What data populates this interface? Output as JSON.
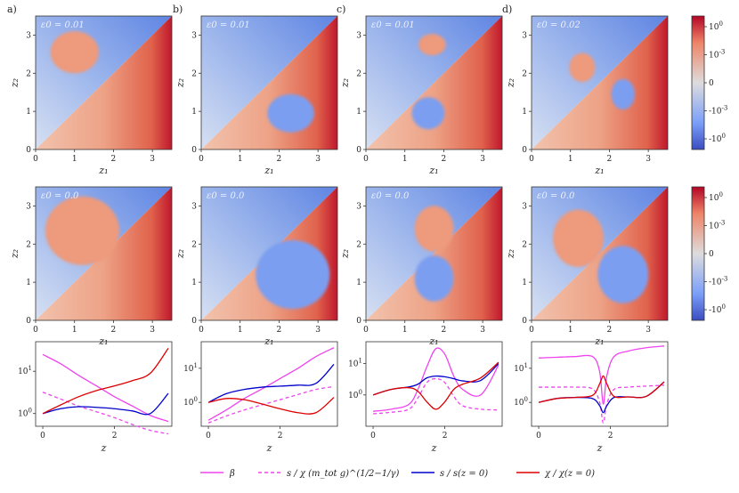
{
  "panel_letters": [
    "a)",
    "b)",
    "c)",
    "d)"
  ],
  "colors": {
    "beta": "#ee44ee",
    "s_ratio": "#0000cc",
    "chi_ratio": "#dd0000",
    "cmap_low": "#3b4cc0",
    "cmap_mid": "#dddcdc",
    "cmap_high": "#b40426"
  },
  "colorbar": {
    "tick_labels": [
      "10^0",
      "10^-3",
      "0",
      "-10^-3",
      "-10^0"
    ]
  },
  "legend": {
    "entries": [
      {
        "key": "beta",
        "label": "β",
        "style": "solid"
      },
      {
        "key": "s_scaled",
        "label": "s / χ (m_tot g)^(1/2−1/γ)",
        "style": "dashed"
      },
      {
        "key": "s_ratio",
        "label": "s / s(z = 0)",
        "style": "solid"
      },
      {
        "key": "chi_ratio",
        "label": "χ / χ(z = 0)",
        "style": "solid"
      }
    ]
  },
  "chart_data": [
    {
      "type": "heatmap",
      "row": "top",
      "annotations": [
        "ε0 = 0.01",
        "ε0 = 0.01",
        "ε0 = 0.01",
        "ε0 = 0.02"
      ],
      "xlabel": "z1",
      "ylabel": "z2",
      "xlim": [
        0,
        3.5
      ],
      "ylim": [
        0,
        3.5
      ],
      "x_ticks": [
        0,
        1,
        2,
        3
      ],
      "y_ticks": [
        0,
        1,
        2,
        3
      ],
      "scale": "symlog",
      "islands": [
        [
          {
            "cx": 1.0,
            "cy": 2.55,
            "rx": 0.62,
            "ry": 0.55,
            "sign": 1
          }
        ],
        [
          {
            "cx": 2.3,
            "cy": 0.95,
            "rx": 0.6,
            "ry": 0.5,
            "sign": -1
          }
        ],
        [
          {
            "cx": 1.7,
            "cy": 2.75,
            "rx": 0.35,
            "ry": 0.28,
            "sign": 1
          },
          {
            "cx": 1.6,
            "cy": 0.95,
            "rx": 0.42,
            "ry": 0.42,
            "sign": -1
          }
        ],
        [
          {
            "cx": 1.3,
            "cy": 2.15,
            "rx": 0.33,
            "ry": 0.38,
            "sign": 1
          },
          {
            "cx": 2.35,
            "cy": 1.45,
            "rx": 0.3,
            "ry": 0.4,
            "sign": -1
          }
        ]
      ]
    },
    {
      "type": "heatmap",
      "row": "middle",
      "annotations": [
        "ε0 = 0.0",
        "ε0 = 0.0",
        "ε0 = 0.0",
        "ε0 = 0.0"
      ],
      "xlabel": "z1",
      "ylabel": "z2",
      "xlim": [
        0,
        3.5
      ],
      "ylim": [
        0,
        3.5
      ],
      "x_ticks": [
        0,
        1,
        2,
        3
      ],
      "y_ticks": [
        0,
        1,
        2,
        3
      ],
      "scale": "symlog",
      "islands": [
        [
          {
            "cx": 1.2,
            "cy": 2.35,
            "rx": 0.95,
            "ry": 0.9,
            "sign": 1
          }
        ],
        [
          {
            "cx": 2.35,
            "cy": 1.2,
            "rx": 0.95,
            "ry": 0.9,
            "sign": -1
          }
        ],
        [
          {
            "cx": 1.75,
            "cy": 2.4,
            "rx": 0.5,
            "ry": 0.6,
            "sign": 1
          },
          {
            "cx": 1.75,
            "cy": 1.1,
            "rx": 0.5,
            "ry": 0.6,
            "sign": -1
          }
        ],
        [
          {
            "cx": 1.2,
            "cy": 2.15,
            "rx": 0.65,
            "ry": 0.75,
            "sign": 1
          },
          {
            "cx": 2.35,
            "cy": 1.2,
            "rx": 0.65,
            "ry": 0.75,
            "sign": -1
          }
        ]
      ]
    },
    {
      "type": "line",
      "row": "bottom",
      "xlabel": "z",
      "yscale": "log",
      "xlim": [
        -0.2,
        3.6
      ],
      "x_ticks": [
        0,
        2
      ],
      "y_tick_labels": [
        "10^0",
        "10^1"
      ],
      "panels": [
        {
          "ylim": [
            0.5,
            50
          ],
          "x": [
            0,
            0.5,
            1,
            1.5,
            2,
            2.5,
            3,
            3.5
          ],
          "series": [
            {
              "key": "beta",
              "values": [
                25,
                15,
                8,
                4.5,
                2.5,
                1.5,
                0.9,
                0.65
              ]
            },
            {
              "key": "s_scaled",
              "values": [
                3.2,
                2.2,
                1.5,
                1.1,
                0.8,
                0.55,
                0.4,
                0.33
              ]
            },
            {
              "key": "s_ratio",
              "values": [
                1.0,
                1.3,
                1.45,
                1.4,
                1.3,
                1.15,
                1.0,
                3.0
              ]
            },
            {
              "key": "chi_ratio",
              "values": [
                1.0,
                1.6,
                2.5,
                3.5,
                4.5,
                6,
                9,
                35
              ]
            }
          ]
        },
        {
          "ylim": [
            0.2,
            60
          ],
          "x": [
            0,
            0.5,
            1,
            1.5,
            2,
            2.5,
            3,
            3.5
          ],
          "series": [
            {
              "key": "beta",
              "values": [
                0.3,
                0.6,
                1.3,
                2.5,
                5,
                10,
                22,
                40
              ]
            },
            {
              "key": "s_scaled",
              "values": [
                0.25,
                0.4,
                0.6,
                0.85,
                1.2,
                1.7,
                2.4,
                2.9
              ]
            },
            {
              "key": "s_ratio",
              "values": [
                1.0,
                1.8,
                2.4,
                2.8,
                3.0,
                3.2,
                3.6,
                13
              ]
            },
            {
              "key": "chi_ratio",
              "values": [
                1.0,
                1.3,
                1.2,
                0.9,
                0.65,
                0.5,
                0.5,
                1.4
              ]
            }
          ]
        },
        {
          "ylim": [
            0.1,
            50
          ],
          "x": [
            0,
            0.5,
            1,
            1.25,
            1.5,
            1.75,
            2,
            2.25,
            2.5,
            3,
            3.5
          ],
          "series": [
            {
              "key": "beta",
              "values": [
                0.3,
                0.35,
                0.5,
                1.5,
                8,
                30,
                20,
                4,
                1.5,
                1.0,
                9
              ]
            },
            {
              "key": "s_scaled",
              "values": [
                0.25,
                0.28,
                0.35,
                0.8,
                2.5,
                3.3,
                2.5,
                0.9,
                0.45,
                0.35,
                0.33
              ]
            },
            {
              "key": "s_ratio",
              "values": [
                1.0,
                1.5,
                1.8,
                2.2,
                3.5,
                4.0,
                3.8,
                3.3,
                2.8,
                2.9,
                10
              ]
            },
            {
              "key": "chi_ratio",
              "values": [
                1.0,
                1.5,
                1.7,
                1.3,
                0.6,
                0.35,
                0.6,
                1.5,
                2.2,
                3.5,
                11
              ]
            }
          ]
        },
        {
          "ylim": [
            0.2,
            60
          ],
          "x": [
            0,
            0.5,
            1,
            1.5,
            1.7,
            1.8,
            1.9,
            2.1,
            2.5,
            3,
            3.5
          ],
          "series": [
            {
              "key": "beta",
              "values": [
                20,
                21,
                22,
                22,
                8,
                0.9,
                6,
                22,
                32,
                40,
                45
              ]
            },
            {
              "key": "s_scaled",
              "values": [
                2.8,
                2.8,
                2.8,
                2.5,
                1.0,
                0.25,
                0.9,
                2.4,
                2.8,
                3.0,
                3.2
              ]
            },
            {
              "key": "s_ratio",
              "values": [
                1.0,
                1.3,
                1.4,
                1.3,
                0.8,
                0.5,
                0.8,
                1.4,
                1.45,
                1.5,
                4.0
              ]
            },
            {
              "key": "chi_ratio",
              "values": [
                1.0,
                1.3,
                1.4,
                1.6,
                3.5,
                6,
                3.5,
                1.5,
                1.45,
                1.5,
                4.0
              ]
            }
          ]
        }
      ]
    }
  ]
}
